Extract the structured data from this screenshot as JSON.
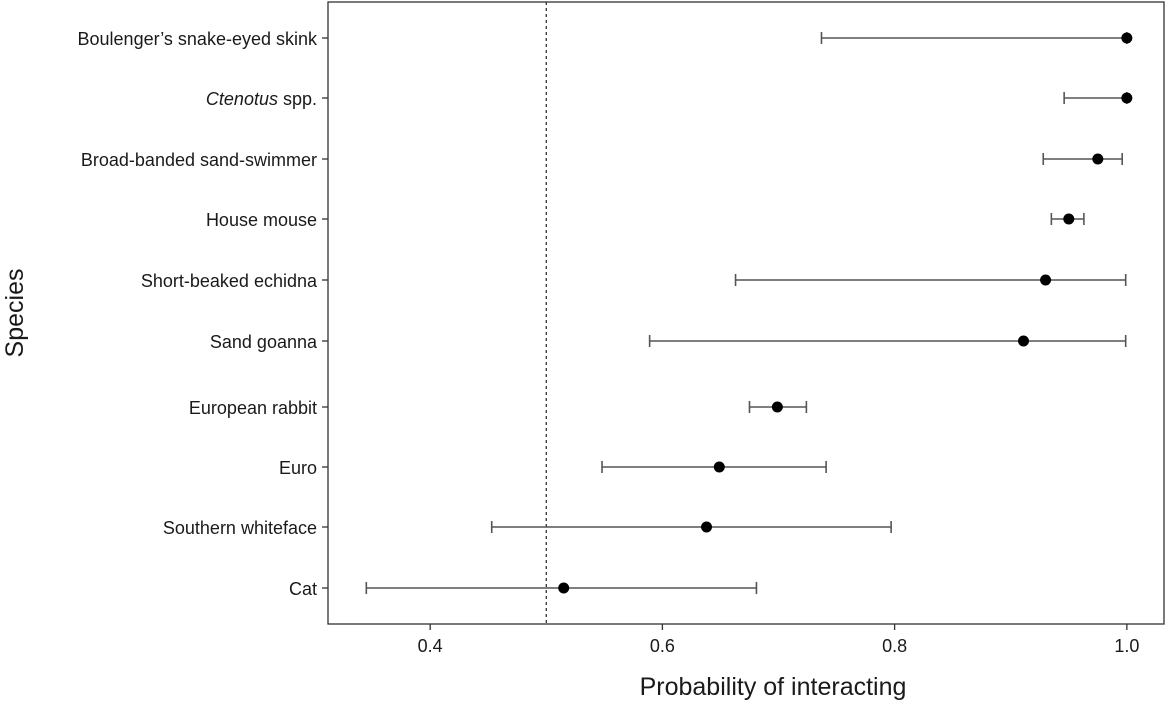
{
  "chart_data": {
    "type": "dot-errorbar",
    "title": "",
    "xlabel": "Probability of interacting",
    "ylabel": "Species",
    "xlim": [
      0.312,
      1.032
    ],
    "xticks": [
      "0.4",
      "0.6",
      "0.8",
      "1.0"
    ],
    "reference_line": {
      "x": 0.5,
      "style": "dotted"
    },
    "grid": false,
    "colors": {
      "point": "#000000",
      "errorbar": "#555555",
      "axis": "#333333",
      "refline": "#333333"
    },
    "rows": [
      {
        "label": "Boulenger’s snake-eyed skink",
        "label_italic": "",
        "label_rest": "",
        "estimate": 1.0,
        "lower": 0.737,
        "upper": 1.0
      },
      {
        "label": "",
        "label_italic": "Ctenotus",
        "label_rest": " spp.",
        "estimate": 1.0,
        "lower": 0.946,
        "upper": 1.0
      },
      {
        "label": "Broad-banded sand-swimmer",
        "label_italic": "",
        "label_rest": "",
        "estimate": 0.975,
        "lower": 0.928,
        "upper": 0.996
      },
      {
        "label": "House mouse",
        "label_italic": "",
        "label_rest": "",
        "estimate": 0.95,
        "lower": 0.935,
        "upper": 0.963
      },
      {
        "label": "Short-beaked echidna",
        "label_italic": "",
        "label_rest": "",
        "estimate": 0.93,
        "lower": 0.663,
        "upper": 0.999
      },
      {
        "label": "Sand goanna",
        "label_italic": "",
        "label_rest": "",
        "estimate": 0.911,
        "lower": 0.589,
        "upper": 0.999
      },
      {
        "label": "European rabbit",
        "label_italic": "",
        "label_rest": "",
        "estimate": 0.699,
        "lower": 0.675,
        "upper": 0.724
      },
      {
        "label": "Euro",
        "label_italic": "",
        "label_rest": "",
        "estimate": 0.649,
        "lower": 0.548,
        "upper": 0.741
      },
      {
        "label": "Southern whiteface",
        "label_italic": "",
        "label_rest": "",
        "estimate": 0.638,
        "lower": 0.453,
        "upper": 0.797
      },
      {
        "label": "Cat",
        "label_italic": "",
        "label_rest": "",
        "estimate": 0.515,
        "lower": 0.345,
        "upper": 0.681
      }
    ]
  }
}
